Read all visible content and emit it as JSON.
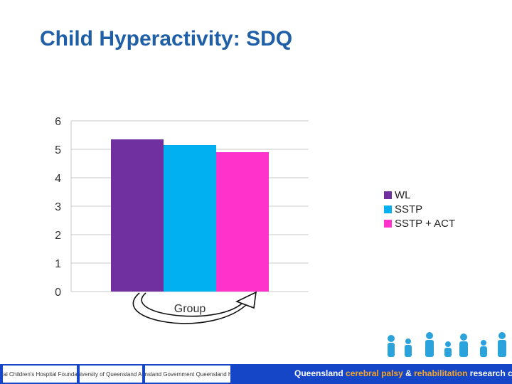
{
  "slide": {
    "title": "Child Hyperactivity: SDQ"
  },
  "chart_data": {
    "type": "bar",
    "title": "",
    "categories": [
      "Group"
    ],
    "series": [
      {
        "name": "WL",
        "values": [
          5.35
        ],
        "color": "#7030a0"
      },
      {
        "name": "SSTP",
        "values": [
          5.15
        ],
        "color": "#00b0f0"
      },
      {
        "name": "SSTP + ACT",
        "values": [
          4.9
        ],
        "color": "#ff33cc"
      }
    ],
    "yticks": [
      0,
      1,
      2,
      3,
      4,
      5,
      6
    ],
    "ylim": [
      0,
      6
    ],
    "xlabel": "",
    "ylabel": "",
    "grid": true,
    "legend": "right"
  },
  "footer": {
    "logos": [
      "Royal Children's Hospital Foundation",
      "The University of Queensland Australia",
      "Queensland Government Queensland Health"
    ],
    "tagline_parts": [
      "Queensland ",
      "cerebral palsy",
      " & ",
      "rehabilitation",
      " research centre"
    ],
    "band_color": "#1646c8",
    "accent_color": "#f5a623"
  }
}
